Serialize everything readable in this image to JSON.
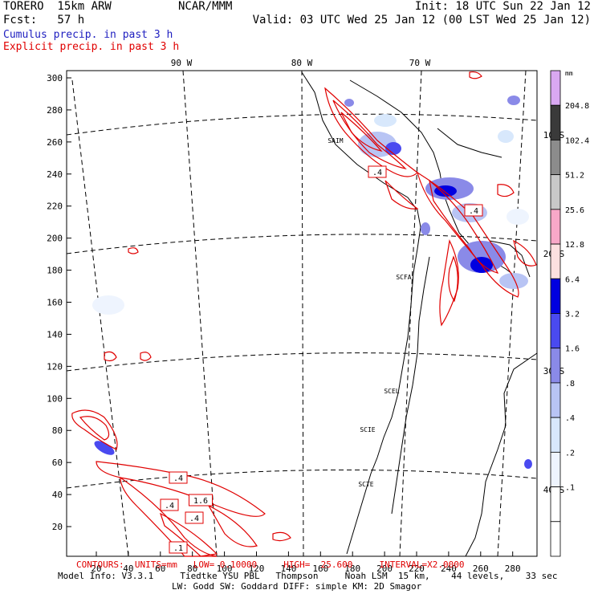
{
  "header": {
    "model": "TORERO  15km ARW",
    "org": "NCAR/MMM",
    "init": "Init: 18 UTC Sun 22 Jan 12",
    "fcst": "Fcst:   57 h",
    "valid": "Valid: 03 UTC Wed 25 Jan 12 (00 LST Wed 25 Jan 12)",
    "field1": "Cumulus precip. in past 3 h",
    "field2": "Explicit precip. in past 3 h"
  },
  "colors": {
    "cumulus": "#2020c0",
    "explicit": "#e00000"
  },
  "map": {
    "lon_labels": [
      "90 W",
      "80 W",
      "70 W"
    ],
    "lat_labels": [
      "10 S",
      "20 S",
      "30 S",
      "40 S"
    ],
    "y_ticks": [
      "300",
      "280",
      "260",
      "240",
      "220",
      "200",
      "180",
      "160",
      "140",
      "120",
      "100",
      "80",
      "60",
      "40",
      "20"
    ],
    "x_ticks": [
      "20",
      "40",
      "60",
      "80",
      "100",
      "120",
      "140",
      "160",
      "180",
      "200",
      "220",
      "240",
      "260",
      "280"
    ],
    "stations": [
      "SAIM",
      "SCFA",
      "SCEL",
      "SCIE",
      "SCTE"
    ],
    "contour_labels": [
      ".4",
      ".4",
      ".4",
      "1.6",
      ".4",
      ".4",
      ".1"
    ]
  },
  "colorbar": {
    "unit": "mm",
    "labels": [
      "204.8",
      "102.4",
      "51.2",
      "25.6",
      "12.8",
      "6.4",
      "3.2",
      "1.6",
      ".8",
      ".4",
      ".2",
      ".1"
    ],
    "colors": [
      "#d9a8f2",
      "#3a3a3a",
      "#8c8c8c",
      "#c8c8c8",
      "#f8a8c8",
      "#fce0e0",
      "#0000e0",
      "#4a4af0",
      "#8a8ae8",
      "#b8c4f4",
      "#d8e8fc",
      "#eef4fe",
      "#ffffff",
      "#ffffff"
    ]
  },
  "footer": {
    "contours": "CONTOURS:  UNITS=mm   LOW= 0.10000     HIGH=  25.600     INTERVAL=X2.0000",
    "line1": "Model Info: V3.3.1     Tiedtke YSU PBL   Thompson     Noah LSM  15 km,    44 levels,    33 sec",
    "line2": "LW: Godd SW: Goddard DIFF: simple KM: 2D Smagor"
  }
}
